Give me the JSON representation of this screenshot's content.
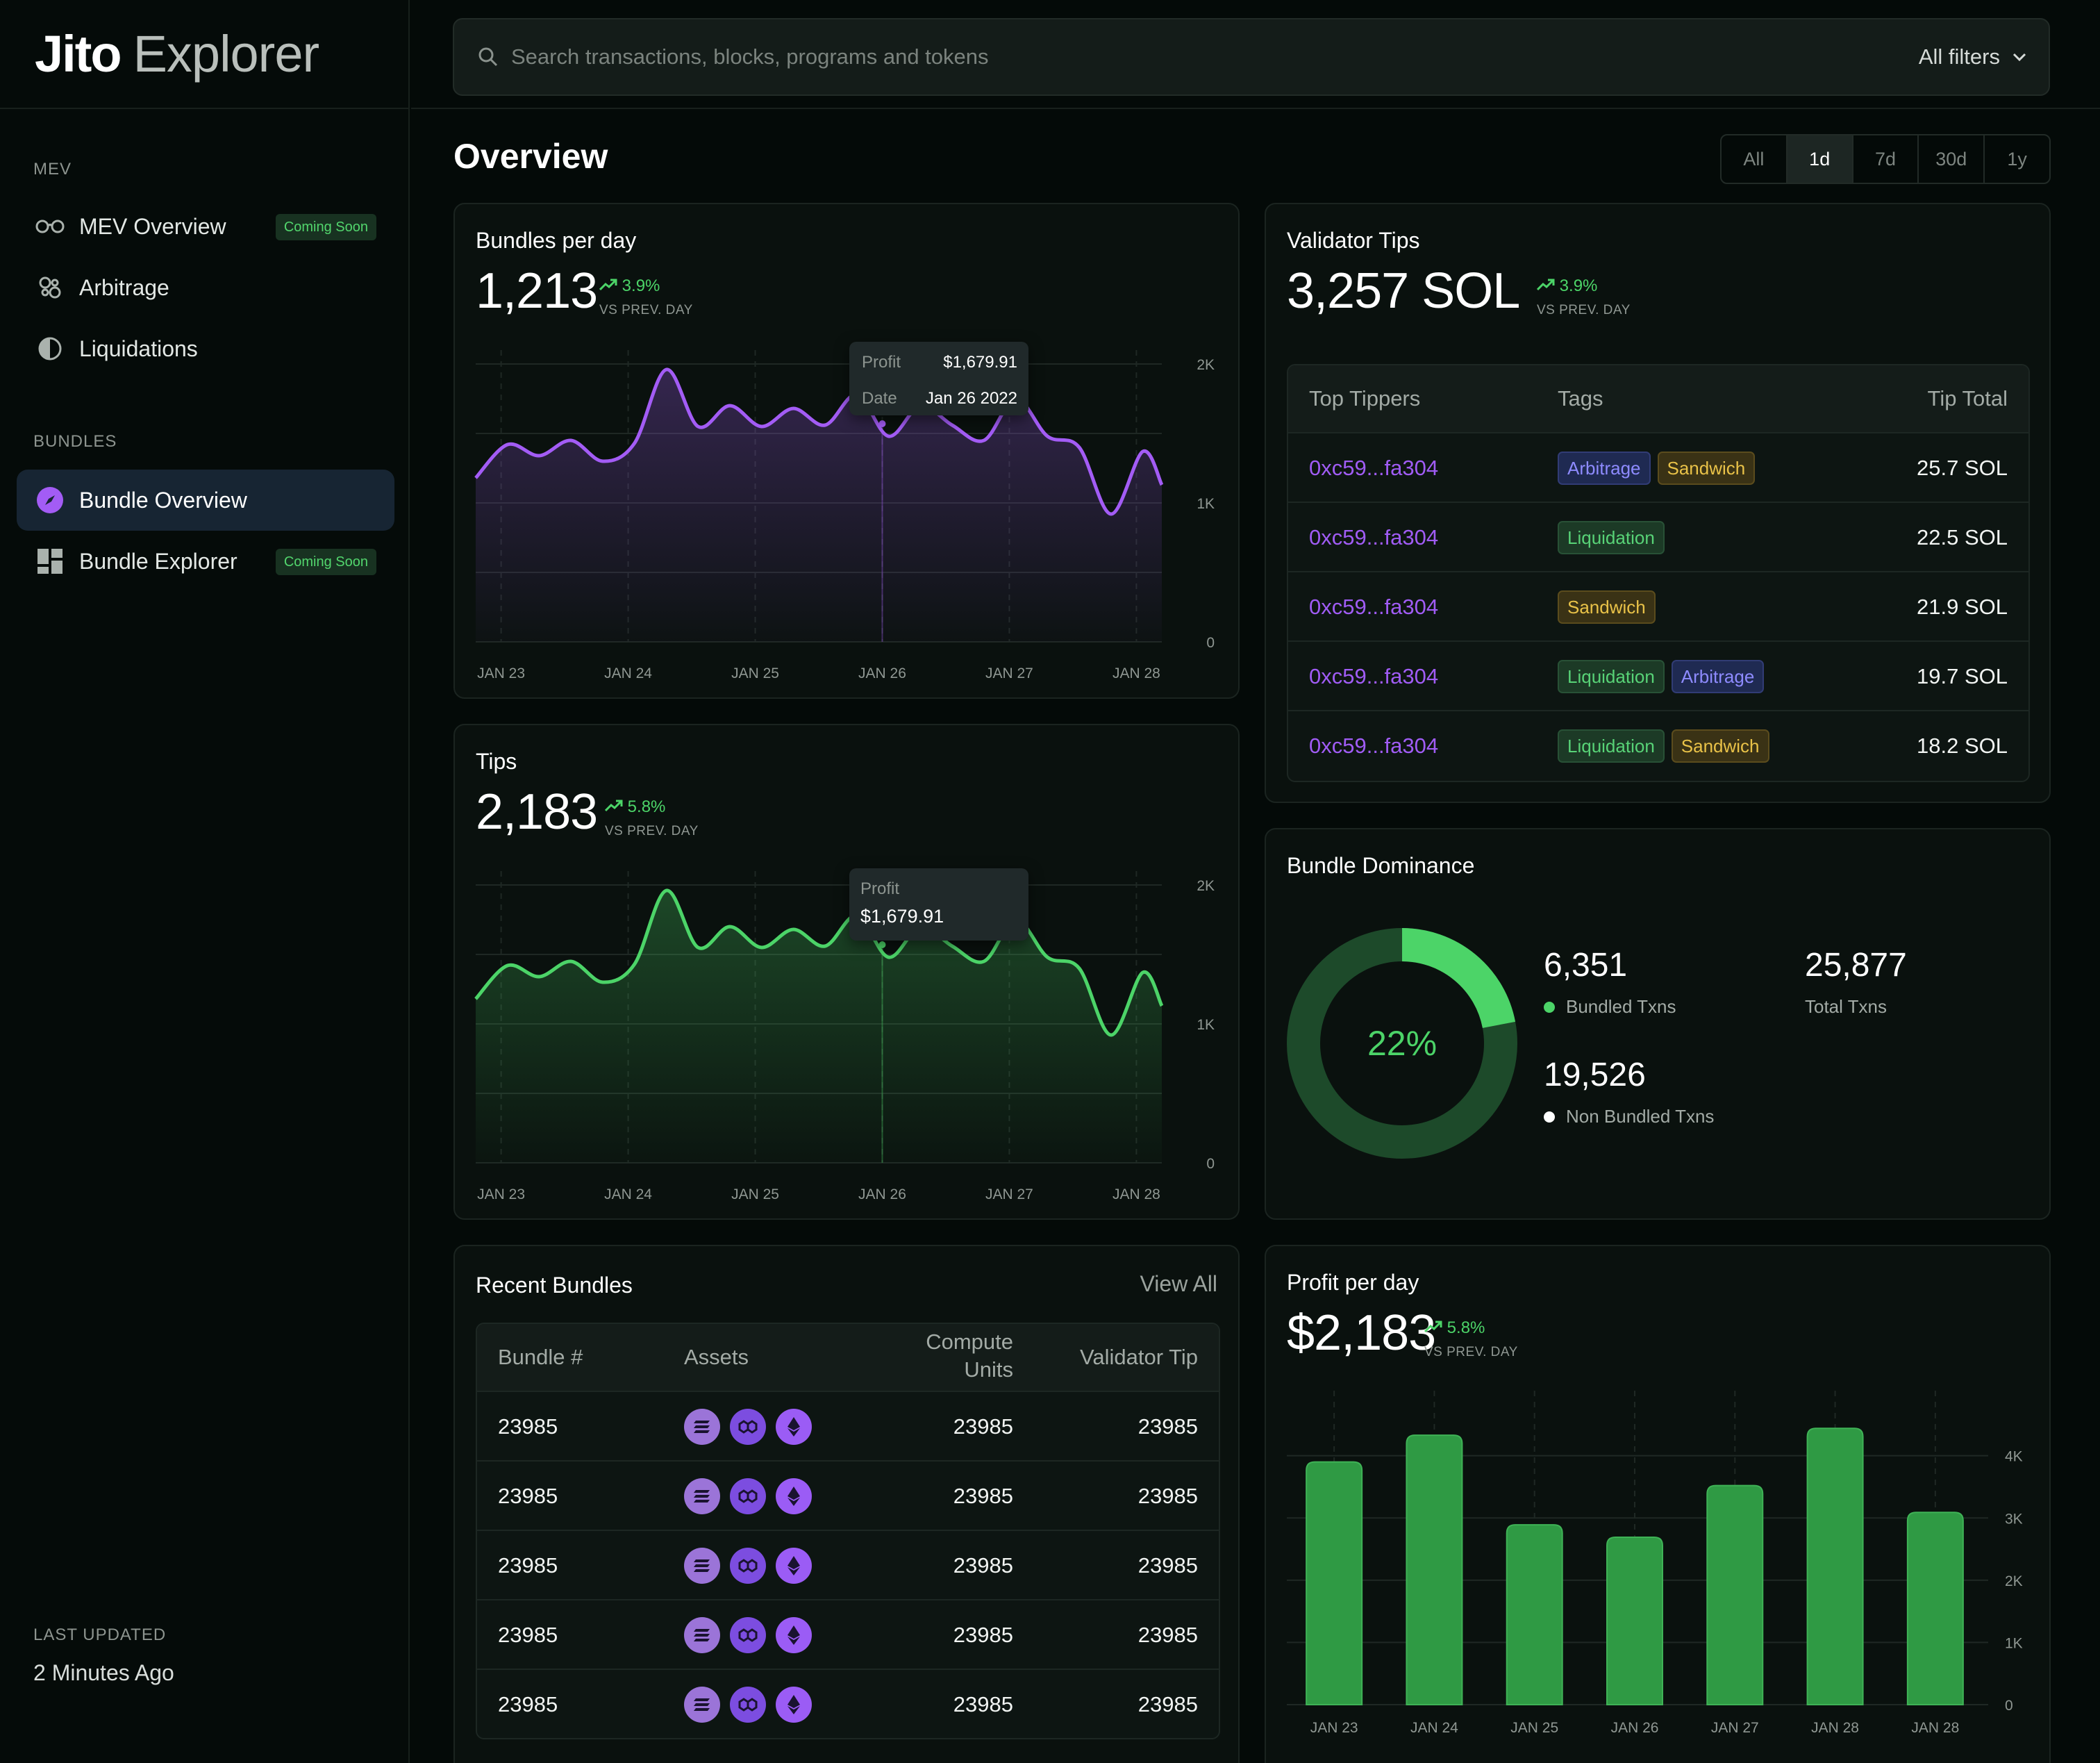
{
  "brand": {
    "name_bold": "Jito",
    "name_light": "Explorer"
  },
  "sidebar": {
    "mev_section": "MEV",
    "bundles_section": "BUNDLES",
    "items": [
      {
        "label": "MEV Overview",
        "badge": "Coming Soon",
        "icon": "glasses-icon"
      },
      {
        "label": "Arbitrage",
        "icon": "arbitrage-icon"
      },
      {
        "label": "Liquidations",
        "icon": "drop-icon"
      },
      {
        "label": "Bundle Overview",
        "icon": "compass-icon",
        "active": true
      },
      {
        "label": "Bundle Explorer",
        "badge": "Coming Soon",
        "icon": "grid-icon"
      }
    ],
    "last_updated_label": "LAST UPDATED",
    "last_updated_value": "2 Minutes Ago"
  },
  "search": {
    "placeholder": "Search transactions, blocks, programs and tokens",
    "filters_label": "All filters"
  },
  "overview": {
    "title": "Overview",
    "ranges": [
      "All",
      "1d",
      "7d",
      "30d",
      "1y"
    ],
    "active_range": "1d"
  },
  "bundles_per_day": {
    "title": "Bundles per day",
    "value": "1,213",
    "delta": "3.9%",
    "delta_sub": "VS PREV. DAY",
    "tooltip": {
      "profit_label": "Profit",
      "profit_value": "$1,679.91",
      "date_label": "Date",
      "date_value": "Jan 26 2022"
    },
    "color": "#a35cf5"
  },
  "tips": {
    "title": "Tips",
    "value": "2,183",
    "delta": "5.8%",
    "delta_sub": "VS PREV. DAY",
    "tooltip": {
      "profit_label": "Profit",
      "profit_value": "$1,679.91"
    },
    "color": "#4cd468"
  },
  "chart_data": [
    {
      "type": "area",
      "ylim": [
        0,
        2000
      ],
      "y_ticks": [
        "2K",
        "1K",
        "0"
      ],
      "categories": [
        "JAN 23",
        "JAN 24",
        "JAN 25",
        "JAN 26",
        "JAN 27",
        "JAN 28"
      ],
      "x": [
        0,
        0.25,
        0.5,
        0.75,
        1,
        1.25,
        1.5,
        1.75,
        2,
        2.25,
        2.5,
        2.75,
        3,
        3.25,
        3.5,
        3.75,
        4,
        4.25,
        4.5,
        4.75,
        5,
        5.25,
        5.4
      ],
      "values": [
        1180,
        1420,
        1340,
        1450,
        1300,
        1430,
        1960,
        1550,
        1700,
        1550,
        1680,
        1560,
        1780,
        1480,
        1700,
        1560,
        1450,
        1750,
        1480,
        1400,
        920,
        1370,
        1130
      ],
      "series": [
        {
          "name": "Bundles per day"
        }
      ]
    },
    {
      "type": "area",
      "ylim": [
        0,
        2000
      ],
      "y_ticks": [
        "2K",
        "1K",
        "0"
      ],
      "categories": [
        "JAN 23",
        "JAN 24",
        "JAN 25",
        "JAN 26",
        "JAN 27",
        "JAN 28"
      ],
      "x": [
        0,
        0.25,
        0.5,
        0.75,
        1,
        1.25,
        1.5,
        1.75,
        2,
        2.25,
        2.5,
        2.75,
        3,
        3.25,
        3.5,
        3.75,
        4,
        4.25,
        4.5,
        4.75,
        5,
        5.25,
        5.4
      ],
      "values": [
        1180,
        1420,
        1340,
        1450,
        1300,
        1430,
        1960,
        1550,
        1700,
        1550,
        1680,
        1560,
        1780,
        1480,
        1700,
        1560,
        1450,
        1750,
        1480,
        1400,
        920,
        1370,
        1130
      ],
      "series": [
        {
          "name": "Tips"
        }
      ]
    },
    {
      "type": "bar",
      "ylim": [
        0,
        4800
      ],
      "y_ticks": [
        "4K",
        "3K",
        "2K",
        "1K",
        "0"
      ],
      "categories": [
        "JAN 23",
        "JAN 24",
        "JAN 25",
        "JAN 26",
        "JAN 27",
        "JAN 28",
        "JAN 28"
      ],
      "values": [
        3900,
        4330,
        2890,
        2690,
        3520,
        4440,
        3090
      ],
      "series": [
        {
          "name": "Profit per day"
        }
      ]
    },
    {
      "type": "pie",
      "values": [
        22,
        78
      ],
      "labels": [
        "Bundled Txns",
        "Non Bundled Txns"
      ]
    }
  ],
  "validator_tips": {
    "title": "Validator Tips",
    "value": "3,257 SOL",
    "delta": "3.9%",
    "delta_sub": "VS PREV. DAY",
    "columns": [
      "Top Tippers",
      "Tags",
      "Tip Total"
    ],
    "rows": [
      {
        "address": "0xc59...fa304",
        "tags": [
          "Arbitrage",
          "Sandwich"
        ],
        "total": "25.7 SOL"
      },
      {
        "address": "0xc59...fa304",
        "tags": [
          "Liquidation"
        ],
        "total": "22.5 SOL"
      },
      {
        "address": "0xc59...fa304",
        "tags": [
          "Sandwich"
        ],
        "total": "21.9 SOL"
      },
      {
        "address": "0xc59...fa304",
        "tags": [
          "Liquidation",
          "Arbitrage"
        ],
        "total": "19.7 SOL"
      },
      {
        "address": "0xc59...fa304",
        "tags": [
          "Liquidation",
          "Sandwich"
        ],
        "total": "18.2 SOL"
      }
    ]
  },
  "bundle_dominance": {
    "title": "Bundle Dominance",
    "percent": "22%",
    "fraction": 0.22,
    "bundled_value": "6,351",
    "bundled_label": "Bundled Txns",
    "total_value": "25,877",
    "total_label": "Total Txns",
    "non_bundled_value": "19,526",
    "non_bundled_label": "Non Bundled Txns",
    "colors": {
      "bundled": "#4cd468",
      "ring": "#1d4a2a",
      "non_bundled": "#ffffff"
    }
  },
  "recent_bundles": {
    "title": "Recent Bundles",
    "view_all": "View All",
    "columns": [
      "Bundle #",
      "Assets",
      "Compute",
      "Units",
      "Validator Tip"
    ],
    "rows": [
      {
        "bundle": "23985",
        "compute": "23985",
        "tip": "23985"
      },
      {
        "bundle": "23985",
        "compute": "23985",
        "tip": "23985"
      },
      {
        "bundle": "23985",
        "compute": "23985",
        "tip": "23985"
      },
      {
        "bundle": "23985",
        "compute": "23985",
        "tip": "23985"
      },
      {
        "bundle": "23985",
        "compute": "23985",
        "tip": "23985"
      }
    ],
    "asset_icons": [
      "solana-icon",
      "polygon-icon",
      "ethereum-icon"
    ]
  },
  "profit_per_day": {
    "title": "Profit per day",
    "value": "$2,183",
    "delta": "5.8%",
    "delta_sub": "VS PREV. DAY",
    "color": "#2f9a44"
  }
}
